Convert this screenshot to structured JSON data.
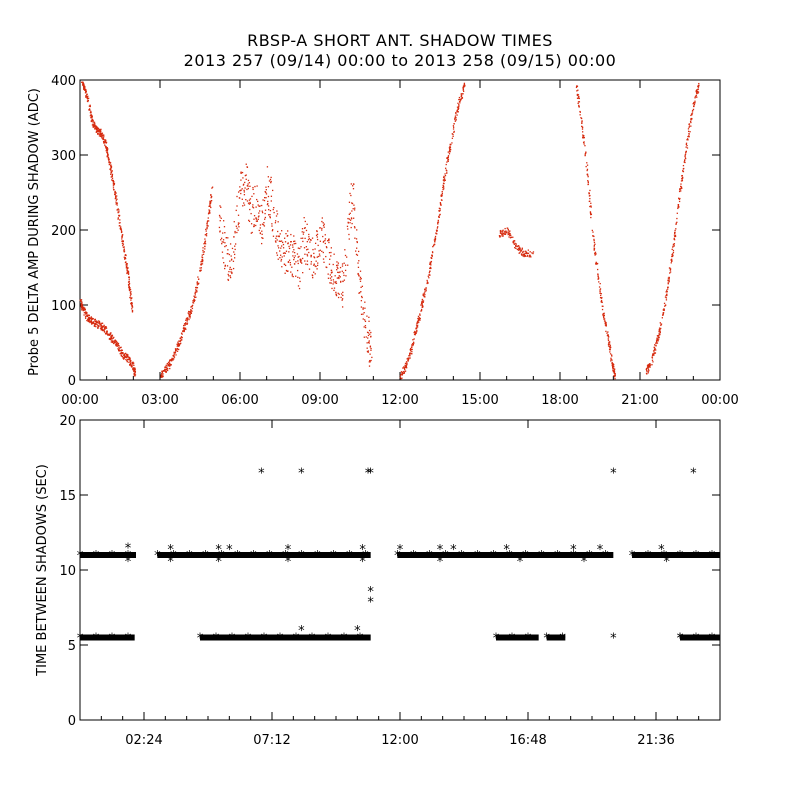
{
  "title": "RBSP-A SHORT ANT. SHADOW TIMES",
  "subtitle": "2013 257 (09/14) 00:00 to 2013 258 (09/15) 00:00",
  "chart_data": [
    {
      "type": "scatter",
      "id": "top",
      "ylabel": "Probe 5 DELTA AMP DURING SHADOW (ADC)",
      "xlim": [
        0,
        24
      ],
      "ylim": [
        0,
        400
      ],
      "yticks": [
        0,
        100,
        200,
        300,
        400
      ],
      "xticks": [
        0,
        3,
        6,
        9,
        12,
        15,
        18,
        21,
        24
      ],
      "xtick_labels": [
        "00:00",
        "03:00",
        "06:00",
        "09:00",
        "12:00",
        "15:00",
        "18:00",
        "21:00",
        "00:00"
      ],
      "marker_color": "#d62a0e",
      "series": [
        {
          "name": "upper-decline-1",
          "points": [
            [
              0.05,
              400
            ],
            [
              0.15,
              390
            ],
            [
              0.3,
              370
            ],
            [
              0.45,
              345
            ],
            [
              0.6,
              335
            ],
            [
              0.75,
              330
            ],
            [
              0.9,
              320
            ],
            [
              1.0,
              305
            ],
            [
              1.15,
              280
            ],
            [
              1.3,
              250
            ],
            [
              1.45,
              215
            ],
            [
              1.6,
              180
            ],
            [
              1.75,
              150
            ],
            [
              1.85,
              120
            ],
            [
              1.95,
              95
            ]
          ]
        },
        {
          "name": "lower-decline-1",
          "points": [
            [
              0.0,
              105
            ],
            [
              0.1,
              95
            ],
            [
              0.25,
              85
            ],
            [
              0.4,
              80
            ],
            [
              0.6,
              76
            ],
            [
              0.8,
              72
            ],
            [
              1.0,
              65
            ],
            [
              1.2,
              55
            ],
            [
              1.4,
              45
            ],
            [
              1.6,
              35
            ],
            [
              1.8,
              28
            ],
            [
              1.95,
              20
            ],
            [
              2.05,
              10
            ]
          ]
        },
        {
          "name": "rise-1",
          "points": [
            [
              3.0,
              5
            ],
            [
              3.2,
              15
            ],
            [
              3.4,
              25
            ],
            [
              3.6,
              40
            ],
            [
              3.8,
              60
            ],
            [
              4.0,
              80
            ],
            [
              4.2,
              100
            ],
            [
              4.4,
              130
            ],
            [
              4.6,
              170
            ],
            [
              4.8,
              220
            ],
            [
              4.95,
              260
            ]
          ]
        },
        {
          "name": "midday-cloud",
          "points": [
            [
              5.2,
              210
            ],
            [
              5.4,
              180
            ],
            [
              5.6,
              150
            ],
            [
              5.8,
              190
            ],
            [
              6.0,
              250
            ],
            [
              6.2,
              270
            ],
            [
              6.4,
              220
            ],
            [
              6.6,
              240
            ],
            [
              6.8,
              200
            ],
            [
              7.0,
              260
            ],
            [
              7.2,
              230
            ],
            [
              7.4,
              190
            ],
            [
              7.6,
              170
            ],
            [
              7.8,
              175
            ],
            [
              8.0,
              165
            ],
            [
              8.2,
              150
            ],
            [
              8.4,
              190
            ],
            [
              8.6,
              170
            ],
            [
              8.8,
              160
            ],
            [
              9.0,
              200
            ],
            [
              9.2,
              180
            ],
            [
              9.4,
              150
            ],
            [
              9.6,
              140
            ],
            [
              9.8,
              120
            ],
            [
              10.0,
              180
            ],
            [
              10.2,
              250
            ],
            [
              10.4,
              160
            ],
            [
              10.6,
              90
            ],
            [
              10.8,
              60
            ],
            [
              10.9,
              30
            ]
          ]
        },
        {
          "name": "rise-2",
          "points": [
            [
              12.0,
              5
            ],
            [
              12.2,
              20
            ],
            [
              12.4,
              40
            ],
            [
              12.6,
              70
            ],
            [
              12.8,
              100
            ],
            [
              13.0,
              130
            ],
            [
              13.2,
              170
            ],
            [
              13.4,
              210
            ],
            [
              13.6,
              260
            ],
            [
              13.8,
              300
            ],
            [
              14.0,
              340
            ],
            [
              14.2,
              370
            ],
            [
              14.4,
              395
            ]
          ]
        },
        {
          "name": "scatter-15-17",
          "points": [
            [
              15.7,
              195
            ],
            [
              16.0,
              200
            ],
            [
              16.3,
              180
            ],
            [
              16.6,
              170
            ],
            [
              17.0,
              170
            ]
          ]
        },
        {
          "name": "decline-2",
          "points": [
            [
              18.6,
              395
            ],
            [
              18.8,
              340
            ],
            [
              19.0,
              280
            ],
            [
              19.2,
              200
            ],
            [
              19.4,
              140
            ],
            [
              19.6,
              90
            ],
            [
              19.8,
              55
            ],
            [
              19.95,
              20
            ],
            [
              20.05,
              5
            ]
          ]
        },
        {
          "name": "rise-3",
          "points": [
            [
              21.2,
              10
            ],
            [
              21.4,
              25
            ],
            [
              21.6,
              50
            ],
            [
              21.8,
              80
            ],
            [
              22.0,
              120
            ],
            [
              22.2,
              170
            ],
            [
              22.4,
              230
            ],
            [
              22.6,
              280
            ],
            [
              22.8,
              330
            ],
            [
              23.0,
              370
            ],
            [
              23.2,
              395
            ]
          ]
        }
      ]
    },
    {
      "type": "scatter",
      "id": "bottom",
      "ylabel": "TIME BETWEEN SHADOWS (SEC)",
      "xlim": [
        0,
        24
      ],
      "ylim": [
        0,
        20
      ],
      "yticks": [
        0,
        5,
        10,
        15,
        20
      ],
      "xticks": [
        2.4,
        7.2,
        12.0,
        16.8,
        21.6
      ],
      "xtick_labels": [
        "02:24",
        "07:12",
        "12:00",
        "16:48",
        "21:36"
      ],
      "marker": "*",
      "bands": [
        {
          "name": "band-11s",
          "y": 11.0,
          "ranges": [
            [
              0.0,
              2.1
            ],
            [
              2.9,
              10.9
            ],
            [
              11.9,
              20.0
            ],
            [
              20.7,
              24.0
            ]
          ]
        },
        {
          "name": "band-5.5s",
          "y": 5.5,
          "ranges": [
            [
              0.0,
              2.05
            ],
            [
              4.5,
              10.9
            ],
            [
              15.6,
              17.2
            ],
            [
              17.5,
              18.2
            ],
            [
              22.5,
              24.0
            ]
          ]
        }
      ],
      "outliers": [
        [
          1.8,
          11.5
        ],
        [
          1.8,
          10.6
        ],
        [
          3.4,
          11.4
        ],
        [
          3.4,
          10.6
        ],
        [
          5.2,
          11.4
        ],
        [
          5.2,
          10.6
        ],
        [
          5.6,
          11.4
        ],
        [
          6.8,
          16.5
        ],
        [
          7.8,
          11.4
        ],
        [
          7.8,
          10.6
        ],
        [
          8.3,
          16.5
        ],
        [
          8.3,
          6.0
        ],
        [
          10.4,
          6.0
        ],
        [
          10.8,
          16.5
        ],
        [
          10.9,
          16.5
        ],
        [
          10.6,
          11.4
        ],
        [
          10.6,
          10.6
        ],
        [
          10.9,
          8.6
        ],
        [
          10.9,
          7.9
        ],
        [
          12.0,
          11.4
        ],
        [
          13.5,
          11.4
        ],
        [
          13.5,
          10.6
        ],
        [
          14.0,
          11.4
        ],
        [
          16.0,
          11.4
        ],
        [
          16.5,
          10.6
        ],
        [
          18.5,
          11.4
        ],
        [
          18.9,
          10.6
        ],
        [
          19.5,
          11.4
        ],
        [
          20.0,
          16.5
        ],
        [
          20.0,
          5.5
        ],
        [
          21.8,
          11.4
        ],
        [
          22.0,
          10.6
        ],
        [
          22.5,
          5.5
        ],
        [
          23.0,
          16.5
        ]
      ]
    }
  ]
}
